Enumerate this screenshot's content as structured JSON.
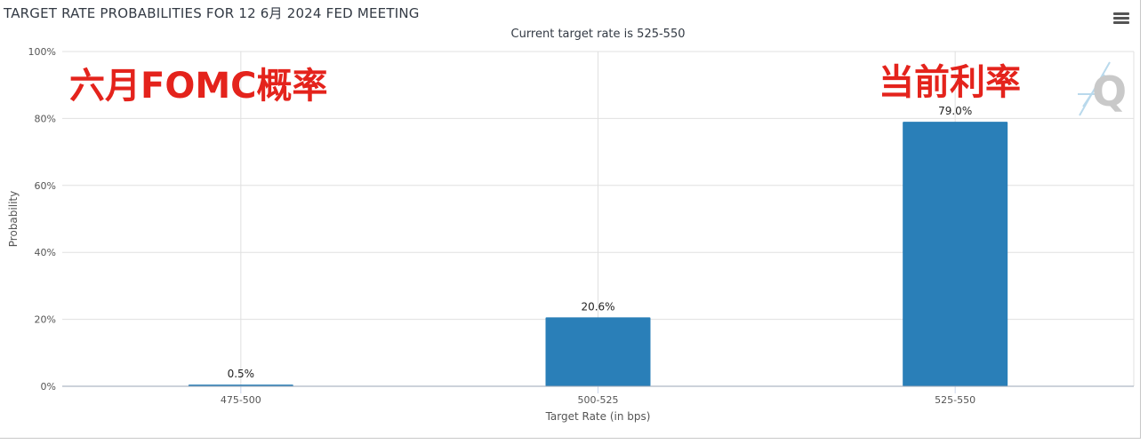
{
  "header": {
    "title": "TARGET RATE PROBABILITIES FOR 12 6月 2024 FED MEETING",
    "menu_icon": "hamburger-menu-icon"
  },
  "annotations": {
    "left": "六月FOMC概率",
    "right": "当前利率"
  },
  "watermark": {
    "letter": "Q"
  },
  "colors": {
    "bar": "#2a7fb8",
    "grid": "#e0e0e0",
    "axis_text": "#555555",
    "annotation": "#e4231c"
  },
  "chart_data": {
    "type": "bar",
    "title": "",
    "subtitle": "Current target rate is 525-550",
    "xlabel": "Target Rate (in bps)",
    "ylabel": "Probability",
    "categories": [
      "475-500",
      "500-525",
      "525-550"
    ],
    "values": [
      0.5,
      20.6,
      79.0
    ],
    "data_labels": [
      "0.5%",
      "20.6%",
      "79.0%"
    ],
    "ylim": [
      0,
      100
    ],
    "yticks": [
      0,
      20,
      40,
      60,
      80,
      100
    ],
    "ytick_labels": [
      "0%",
      "20%",
      "40%",
      "60%",
      "80%",
      "100%"
    ],
    "grid": true,
    "legend": "none"
  }
}
